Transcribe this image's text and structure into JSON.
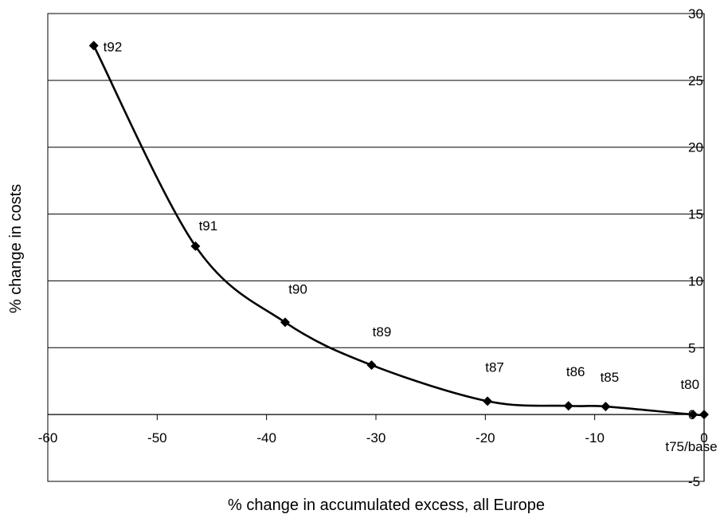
{
  "chart_data": {
    "type": "scatter",
    "title": "",
    "xlabel": "% change in accumulated excess, all Europe",
    "ylabel": "% change in costs",
    "xlim": [
      -60,
      0
    ],
    "ylim": [
      -5,
      30
    ],
    "x_ticks": [
      -60,
      -50,
      -40,
      -30,
      -20,
      -10,
      0
    ],
    "y_ticks": [
      -5,
      0,
      5,
      10,
      15,
      20,
      25,
      30
    ],
    "x_tick_labels": [
      "-60",
      "-50",
      "-40",
      "-30",
      "-20",
      "-10",
      "0"
    ],
    "y_tick_labels": [
      "-5",
      "0",
      "5",
      "10",
      "15",
      "20",
      "25",
      "30"
    ],
    "grid": "horizontal",
    "legend": "none",
    "marker": "diamond",
    "line": "smoothed",
    "color": "#000000",
    "series": [
      {
        "points": [
          {
            "x": -55.8,
            "y": 27.6,
            "label": "t92"
          },
          {
            "x": -46.5,
            "y": 12.6,
            "label": "t91"
          },
          {
            "x": -38.3,
            "y": 6.9,
            "label": "t90"
          },
          {
            "x": -30.4,
            "y": 3.7,
            "label": "t89"
          },
          {
            "x": -19.8,
            "y": 1.0,
            "label": "t87"
          },
          {
            "x": -12.4,
            "y": 0.65,
            "label": "t86"
          },
          {
            "x": -9.0,
            "y": 0.6,
            "label": "t85"
          },
          {
            "x": -1.0,
            "y": 0.0,
            "label": "t80"
          },
          {
            "x": 0.0,
            "y": 0.0,
            "label": "t75/base"
          }
        ]
      }
    ]
  }
}
